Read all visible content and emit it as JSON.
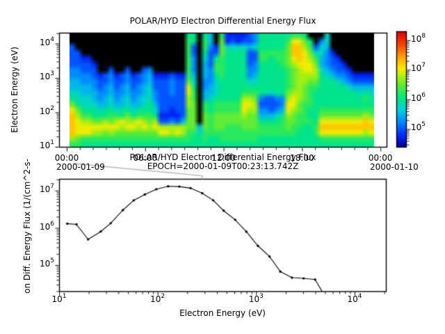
{
  "figure": {
    "background": "#ffffff",
    "frame_color": "#000000",
    "epoch_connector_color": "#b4b4b4"
  },
  "chart_data": [
    {
      "type": "heatmap",
      "title": "POLAR/HYD  Electron Differential Energy Flux",
      "ylabel": "Electron Energy (eV)",
      "yticks": [
        "10^4",
        "10^3",
        "10^2",
        "10^1"
      ],
      "ytick_logs": [
        4,
        3,
        2,
        1
      ],
      "xticks": [
        "00:00",
        "06:00",
        "12:00",
        "18:00",
        "00:00"
      ],
      "xtick_hours": [
        0,
        6,
        12,
        18,
        24
      ],
      "date_left": "2000-01-09",
      "date_right": "2000-01-10",
      "x_axis_range_hours": [
        -0.585,
        24.47
      ],
      "x_data_range_hours": [
        0.2,
        23.5
      ],
      "ylog_range": [
        1.0,
        4.315
      ],
      "color_log_range": [
        4.4,
        8.3
      ],
      "colorbar_ticks": [
        "10^8",
        "10^7",
        "10^6",
        "10^5"
      ],
      "colorbar_tick_logs": [
        8,
        7,
        6,
        5
      ],
      "level_scale": {
        "no_data_char": ".",
        "log10_min": 4.5,
        "log10_step": 0.25,
        "chars": "0123456789abcde"
      },
      "colormap": [
        [
          0.0,
          0,
          0,
          150
        ],
        [
          0.1,
          0,
          40,
          255
        ],
        [
          0.22,
          0,
          140,
          255
        ],
        [
          0.32,
          0,
          210,
          220
        ],
        [
          0.42,
          0,
          230,
          130
        ],
        [
          0.52,
          80,
          235,
          60
        ],
        [
          0.6,
          160,
          240,
          20
        ],
        [
          0.68,
          255,
          235,
          0
        ],
        [
          0.78,
          255,
          160,
          0
        ],
        [
          0.88,
          255,
          70,
          0
        ],
        [
          1.0,
          220,
          0,
          0
        ]
      ],
      "columns": [
        "..22223344568abbbb97",
        "...222334455689aaa87",
        "....122334455679aa76",
        "....122334455679aa76",
        ".....12233445668a976",
        ".......122334568a976",
        ".......223344669a876",
        "......2334455678a976",
        ".......122334579a876",
        ".......22334466a9876",
        "......2334455689a876",
        ".......122334569a876",
        ".......22334467a9876",
        "......2334455679a876",
        "......34455566789876",
        ".......122334569a876",
        ".......1222222129a76",
        ".......1222222129a76",
        ".......2333221139976",
        ".......1222222129a76",
        ".......1222222249976",
        "677777778aa998888776",
        "66223334567788888766",
        "................4566",
        "67765444334477888776",
        "44322233344566777766",
        "..126776555677888766",
        "78887777666677888776",
        "11566666666677887776",
        "12566666666677887776",
        "11566666666677887776",
        "125666666679aa988776",
        "224222335679a9888776",
        "33522334567899888776",
        "66677666666323467766",
        "66677666666223467766",
        "66676666665222467766",
        "66677666666323567766",
        "66677766666334677766",
        "678888777789aa988766",
        "7abba988889aa9887766",
        "7abbba99999988777666",
        "689aaaa9988877776666",
        ".6789aa9877776676666",
        "..257899876666667766",
        ".35544566666678aba76",
        "554333456666678aba76",
        "...122346666678aba76",
        "....12235666678aba76",
        ".....1234666678aba76",
        "......123566678aba76",
        ".......12466678aba76",
        ".......12456678aba76",
        ".......12467679bb976",
        ".......12456678aba76"
      ]
    },
    {
      "type": "line",
      "title": "POLAR/HYD  Electron Differential Energy Flux",
      "subtitle": "EPOCH=2000-01-09T00:23:13.742Z",
      "xlabel": "Electron Energy (eV)",
      "ylabel": "on Diff. Energy Flux (1/(cm^2-s-",
      "xticks": [
        "10^1",
        "10^2",
        "10^3",
        "10^4"
      ],
      "xtick_logs": [
        1,
        2,
        3,
        4
      ],
      "yticks": [
        "10^7",
        "10^6",
        "10^5"
      ],
      "ytick_logs": [
        7,
        6,
        5
      ],
      "xlog_range": [
        1.0,
        4.318
      ],
      "ylog_range": [
        4.299,
        7.318
      ],
      "line_color": "#000000",
      "marker_count": 23,
      "energy_eV": [
        12.1,
        15.0,
        19.7,
        26.5,
        33.4,
        44.4,
        57.2,
        74.2,
        97.0,
        128,
        166,
        216,
        284,
        367,
        468,
        613,
        796,
        1043,
        1368,
        1762,
        2312,
        3034,
        3972,
        4660
      ],
      "flux": [
        1300000.0,
        1240000.0,
        490000.0,
        800000.0,
        1330000.0,
        3000000.0,
        5500000.0,
        7900000.0,
        10900000.0,
        13100000.0,
        12900000.0,
        11700000.0,
        8500000.0,
        5500000.0,
        2900000.0,
        1650000.0,
        790000.0,
        330000.0,
        170000.0,
        67000.0,
        46000.0,
        44000.0,
        41000.0,
        20000.0
      ]
    }
  ]
}
